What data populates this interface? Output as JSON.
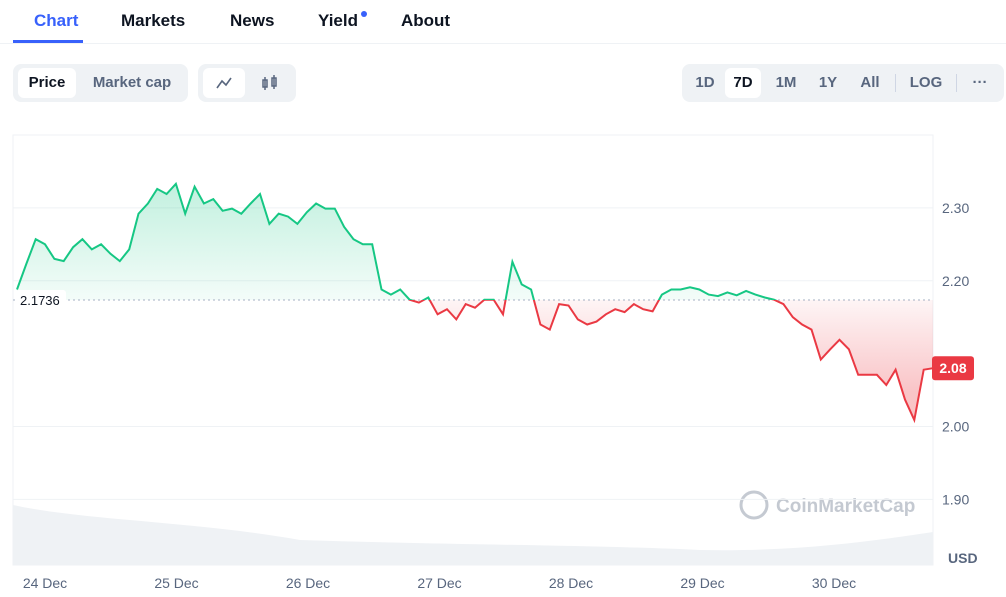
{
  "nav": {
    "tabs": [
      "Chart",
      "Markets",
      "News",
      "Yield",
      "About"
    ],
    "active": "Chart"
  },
  "toolbar": {
    "metric_buttons": [
      "Price",
      "Market cap"
    ],
    "active_metric": "Price",
    "range_buttons": [
      "1D",
      "7D",
      "1M",
      "1Y",
      "All"
    ],
    "active_range": "7D",
    "scale_button": "LOG",
    "more_button": "···"
  },
  "chart_data": {
    "type": "line",
    "x_labels": [
      "24 Dec",
      "25 Dec",
      "26 Dec",
      "27 Dec",
      "28 Dec",
      "29 Dec",
      "30 Dec"
    ],
    "values": [
      2.188,
      2.223,
      2.257,
      2.25,
      2.23,
      2.227,
      2.246,
      2.257,
      2.243,
      2.25,
      2.237,
      2.227,
      2.243,
      2.292,
      2.306,
      2.326,
      2.319,
      2.333,
      2.292,
      2.329,
      2.306,
      2.312,
      2.296,
      2.299,
      2.292,
      2.306,
      2.319,
      2.278,
      2.292,
      2.288,
      2.278,
      2.294,
      2.306,
      2.299,
      2.299,
      2.274,
      2.257,
      2.25,
      2.25,
      2.188,
      2.181,
      2.188,
      2.174,
      2.17,
      2.177,
      2.154,
      2.161,
      2.147,
      2.168,
      2.163,
      2.174,
      2.174,
      2.154,
      2.226,
      2.195,
      2.188,
      2.14,
      2.133,
      2.168,
      2.166,
      2.147,
      2.14,
      2.144,
      2.154,
      2.161,
      2.157,
      2.168,
      2.161,
      2.158,
      2.181,
      2.188,
      2.188,
      2.191,
      2.188,
      2.181,
      2.179,
      2.184,
      2.18,
      2.186,
      2.181,
      2.177,
      2.174,
      2.168,
      2.15,
      2.14,
      2.133,
      2.092,
      2.106,
      2.119,
      2.106,
      2.071,
      2.071,
      2.071,
      2.057,
      2.078,
      2.037,
      2.009,
      2.078,
      2.08
    ],
    "baseline": 2.1736,
    "current": 2.08,
    "up_color": "#16c784",
    "down_color": "#ea3943",
    "ylim": [
      1.81,
      2.4
    ],
    "yticks": [
      {
        "value": 1.9,
        "label": "1.90"
      },
      {
        "value": 2.0,
        "label": "2.00"
      },
      {
        "value": 2.2,
        "label": "2.20"
      },
      {
        "value": 2.3,
        "label": "2.30"
      }
    ],
    "y_unit": "USD",
    "watermark": "CoinMarketCap",
    "grid": true
  }
}
